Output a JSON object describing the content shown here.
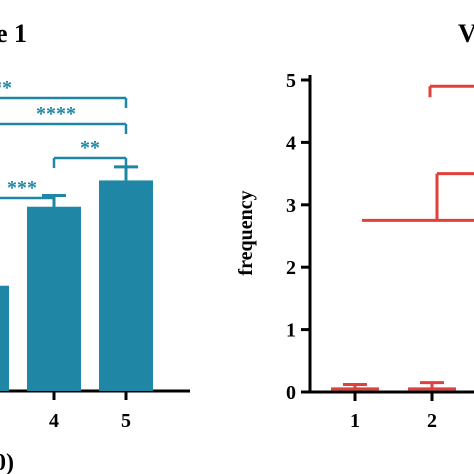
{
  "figure": {
    "heading": "e 1",
    "corner_text": "V",
    "bottom_mark": "0)"
  },
  "chart_data": [
    {
      "type": "bar",
      "categories": [
        "4",
        "5"
      ],
      "values": [
        2.45,
        2.8
      ],
      "error": [
        0.15,
        0.18
      ],
      "partial_bar_value": 1.4,
      "xlabel": "",
      "ylabel": "",
      "ylim": [
        0,
        4.8
      ],
      "grid": false,
      "bar_color": "#1f87a5",
      "significance": [
        {
          "label": "**",
          "from": "",
          "to": "5"
        },
        {
          "label": "****",
          "from": "",
          "to": "5"
        },
        {
          "label": "**",
          "from": "4",
          "to": "5"
        },
        {
          "label": "***",
          "from": "",
          "to": "4"
        }
      ]
    },
    {
      "type": "bar",
      "categories": [
        "1",
        "2"
      ],
      "values": [
        0.05,
        0.05
      ],
      "error": [
        0.07,
        0.1
      ],
      "xlabel": "",
      "ylabel": "frequency",
      "yticks": [
        "0",
        "1",
        "2",
        "3",
        "4",
        "5"
      ],
      "ylim": [
        0,
        5
      ],
      "grid": false,
      "series_color": "#e0413a",
      "bracket_levels": [
        4.9,
        3.5,
        2.75
      ]
    }
  ]
}
